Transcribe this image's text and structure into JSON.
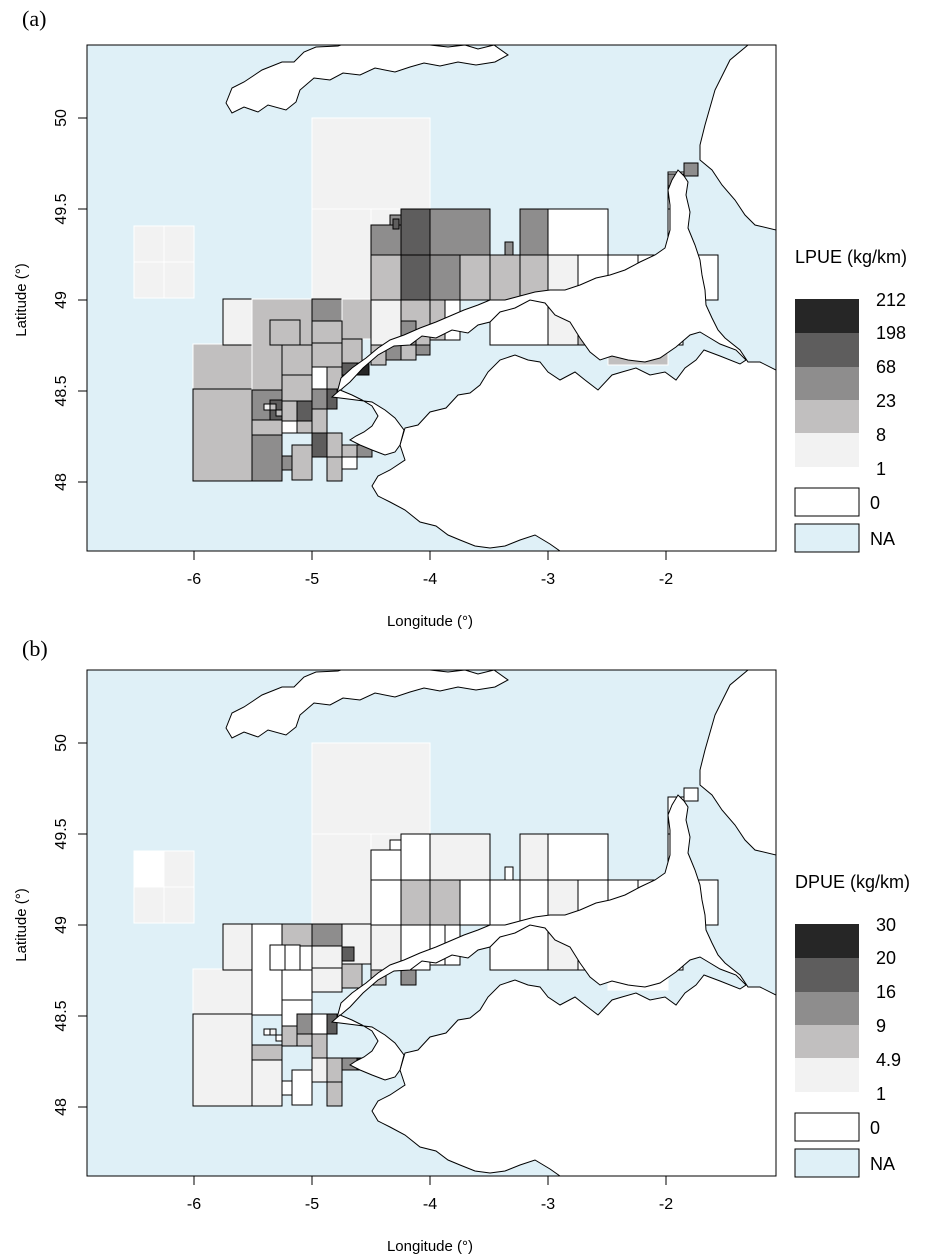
{
  "panels": [
    {
      "label": "(a)",
      "legend_title": "LPUE (kg/km)",
      "legend_classes": [
        "212",
        "198",
        "68",
        "23",
        "8",
        "1"
      ],
      "legend_zero": "0",
      "legend_na": "NA",
      "xlabel": "Longitude (°)",
      "ylabel": "Latitude (°)"
    },
    {
      "label": "(b)",
      "legend_title": "DPUE (kg/km)",
      "legend_classes": [
        "30",
        "20",
        "16",
        "9",
        "4.9",
        "1"
      ],
      "legend_zero": "0",
      "legend_na": "NA",
      "xlabel": "Longitude (°)",
      "ylabel": "Latitude (°)"
    }
  ],
  "x_ticks": [
    "-6",
    "-5",
    "-4",
    "-3",
    "-2"
  ],
  "y_ticks": [
    "48",
    "48.5",
    "49",
    "49.5",
    "50"
  ],
  "colors": {
    "sea_na": "#dff0f7",
    "zero": "#ffffff",
    "class1": "#f2f2f2",
    "class2": "#c1bfbf",
    "class3": "#8e8d8d",
    "class4": "#5e5d5d",
    "class5": "#262626"
  }
}
